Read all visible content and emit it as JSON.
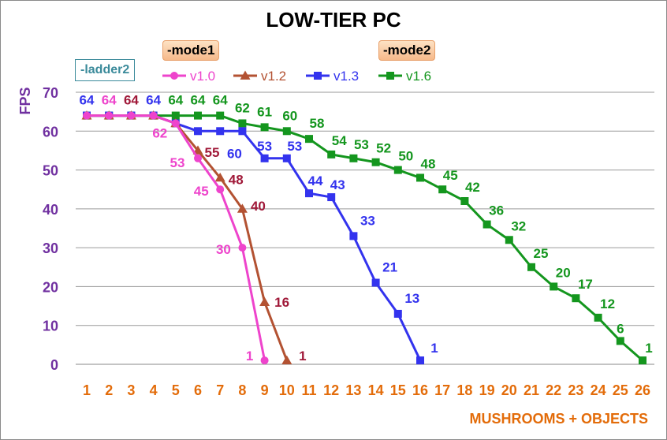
{
  "chart_data": {
    "type": "line",
    "title": "LOW-TIER PC",
    "xlabel": "MUSHROOMS + OBJECTS",
    "ylabel": "FPS",
    "ylim": [
      0,
      70
    ],
    "xlim": [
      1,
      26
    ],
    "yticks": [
      "0",
      "10",
      "20",
      "30",
      "40",
      "50",
      "60",
      "70"
    ],
    "xticks": [
      "1",
      "2",
      "3",
      "4",
      "5",
      "6",
      "7",
      "8",
      "9",
      "10",
      "11",
      "12",
      "13",
      "14",
      "15",
      "16",
      "17",
      "18",
      "19",
      "20",
      "21",
      "22",
      "23",
      "24",
      "25",
      "26"
    ],
    "grid": "horizontal",
    "legend_position": "top",
    "annotations": [
      "-mode1",
      "-mode2",
      "-ladder2"
    ],
    "series": [
      {
        "name": "v1.0",
        "color": "#ee44cc",
        "label_color": "#ee44cc",
        "marker": "circle",
        "x": [
          1,
          2,
          3,
          4,
          5,
          6,
          7,
          8,
          9
        ],
        "values": [
          64,
          64,
          64,
          64,
          62,
          53,
          45,
          30,
          1
        ],
        "labels": [
          "",
          "64",
          "",
          "",
          "62",
          "53",
          "45",
          "30",
          "1"
        ]
      },
      {
        "name": "v1.2",
        "color": "#b35232",
        "label_color": "#a01838",
        "marker": "triangle",
        "x": [
          1,
          2,
          3,
          4,
          5,
          6,
          7,
          8,
          9,
          10
        ],
        "values": [
          64,
          64,
          64,
          64,
          62,
          55,
          48,
          40,
          16,
          1
        ],
        "labels": [
          "",
          "",
          "64",
          "",
          "",
          "55",
          "48",
          "40",
          "16",
          "1"
        ]
      },
      {
        "name": "v1.3",
        "color": "#3333ee",
        "label_color": "#3333ee",
        "marker": "square",
        "x": [
          1,
          2,
          3,
          4,
          5,
          6,
          7,
          8,
          9,
          10,
          11,
          12,
          13,
          14,
          15,
          16
        ],
        "values": [
          64,
          64,
          64,
          64,
          62,
          60,
          60,
          60,
          53,
          53,
          44,
          43,
          33,
          21,
          13,
          1
        ],
        "labels": [
          "64",
          "",
          "",
          "64",
          "",
          "",
          "",
          "60",
          "53",
          "53",
          "44",
          "43",
          "33",
          "21",
          "13",
          "1"
        ]
      },
      {
        "name": "v1.6",
        "color": "#14961e",
        "label_color": "#14961e",
        "marker": "square",
        "x": [
          1,
          2,
          3,
          4,
          5,
          6,
          7,
          8,
          9,
          10,
          11,
          12,
          13,
          14,
          15,
          16,
          17,
          18,
          19,
          20,
          21,
          22,
          23,
          24,
          25,
          26
        ],
        "values": [
          64,
          64,
          64,
          64,
          64,
          64,
          64,
          62,
          61,
          60,
          58,
          54,
          53,
          52,
          50,
          48,
          45,
          42,
          36,
          32,
          25,
          20,
          17,
          12,
          6,
          1
        ],
        "labels": [
          "",
          "",
          "",
          "",
          "64",
          "64",
          "64",
          "62",
          "61",
          "60",
          "58",
          "54",
          "53",
          "52",
          "50",
          "48",
          "45",
          "42",
          "36",
          "32",
          "25",
          "20",
          "17",
          "12",
          "6",
          "1"
        ]
      }
    ]
  }
}
